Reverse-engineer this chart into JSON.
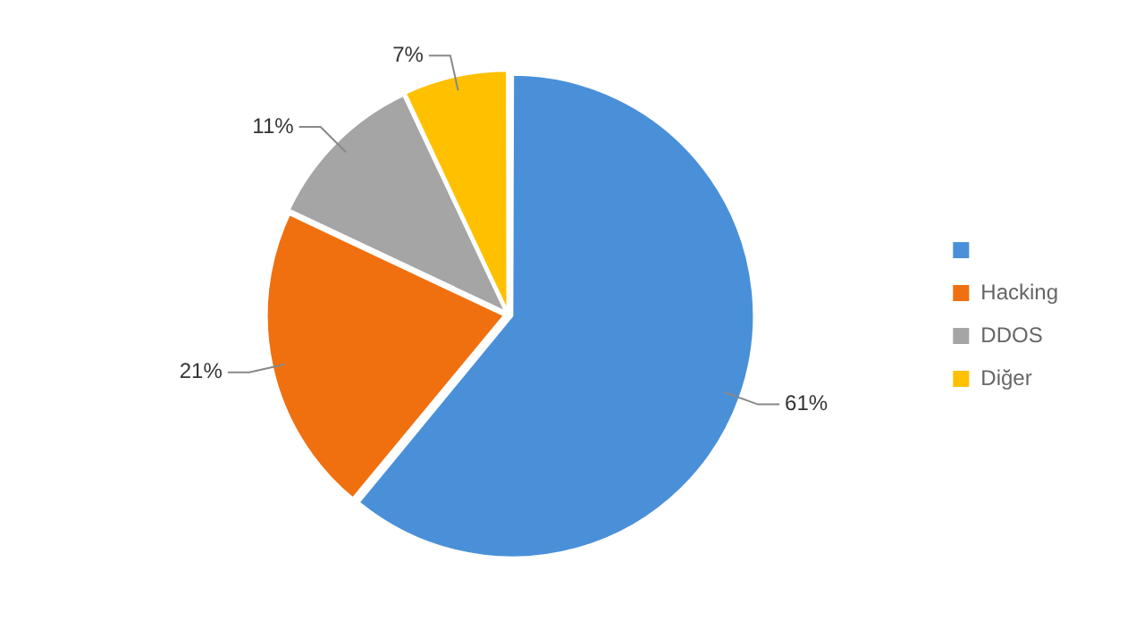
{
  "chart_data": {
    "type": "pie",
    "categories": [
      null,
      "Hacking",
      "DDOS",
      "Diğer"
    ],
    "values": [
      61,
      21,
      11,
      7
    ],
    "colors": [
      "#4a90d9",
      "#f07010",
      "#a5a5a5",
      "#ffc000"
    ],
    "value_labels": [
      "61%",
      "21%",
      "11%",
      "7%"
    ],
    "legend": "right"
  }
}
